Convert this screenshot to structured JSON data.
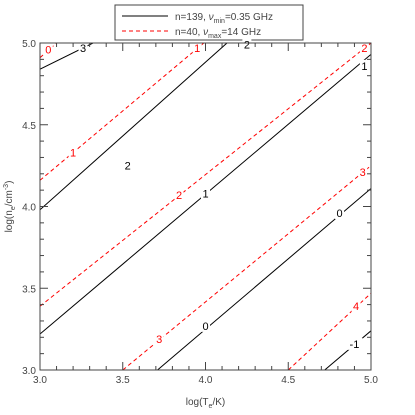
{
  "chart_data": {
    "type": "line",
    "subtype": "contour",
    "xlabel": "log(T",
    "xlabel_sub": "e",
    "xlabel_end": "/K)",
    "ylabel": "log(n",
    "ylabel_sub": "e",
    "ylabel_mid": "/cm",
    "ylabel_sup": "-3",
    "ylabel_end": ")",
    "xlim": [
      3.0,
      5.0
    ],
    "ylim": [
      3.0,
      5.0
    ],
    "xticks": [
      "3.0",
      "3.5",
      "4.0",
      "4.5",
      "5.0"
    ],
    "yticks": [
      "3.0",
      "3.5",
      "4.0",
      "4.5",
      "5.0"
    ],
    "grid": false,
    "legend": {
      "placement": "top-center, outside plot",
      "entries": [
        {
          "text_pre": "n=139, ",
          "nu": "ν",
          "sub": "min",
          "text_post": "=0.35 GHz",
          "color": "#000000",
          "dash": false
        },
        {
          "text_pre": "n=40, ",
          "nu": "ν",
          "sub": "max",
          "text_post": "=14 GHz",
          "color": "#ff0000",
          "dash": true
        }
      ]
    },
    "series": [
      {
        "name": "n=139, νmin=0.35 GHz",
        "color": "#000000",
        "style": "solid",
        "contours": [
          {
            "label": "3",
            "points": [
              [
                3.0,
                4.84
              ],
              [
                3.32,
                5.0
              ]
            ],
            "label_at": [
              3.26,
              4.97
            ]
          },
          {
            "label": "2",
            "points": [
              [
                3.0,
                3.98
              ],
              [
                4.13,
                5.0
              ]
            ],
            "label_at": [
              3.53,
              4.25
            ]
          },
          {
            "label": "2",
            "points": [
              [
                3.0,
                3.98
              ],
              [
                4.13,
                5.0
              ]
            ],
            "label_at": [
              4.25,
              4.99
            ]
          },
          {
            "label": "1",
            "points": [
              [
                3.0,
                3.22
              ],
              [
                5.0,
                4.93
              ]
            ],
            "label_at": [
              4.0,
              4.08
            ]
          },
          {
            "label": "1",
            "points": [
              [
                3.0,
                3.22
              ],
              [
                5.0,
                4.93
              ]
            ],
            "label_at": [
              4.96,
              4.86
            ]
          },
          {
            "label": "0",
            "points": [
              [
                3.71,
                3.0
              ],
              [
                5.0,
                4.11
              ]
            ],
            "label_at": [
              4.0,
              3.27
            ]
          },
          {
            "label": "0",
            "points": [
              [
                3.71,
                3.0
              ],
              [
                5.0,
                4.11
              ]
            ],
            "label_at": [
              4.81,
              3.96
            ]
          },
          {
            "label": "-1",
            "points": [
              [
                4.72,
                3.0
              ],
              [
                5.0,
                3.24
              ]
            ],
            "label_at": [
              4.9,
              3.16
            ]
          }
        ]
      },
      {
        "name": "n=40, νmax=14 GHz",
        "color": "#ff0000",
        "style": "dashed",
        "contours": [
          {
            "label": "0",
            "points": [
              [
                3.0,
                4.91
              ],
              [
                3.1,
                5.0
              ]
            ],
            "label_at": [
              3.05,
              4.96
            ]
          },
          {
            "label": "1",
            "points": [
              [
                3.0,
                4.16
              ],
              [
                3.99,
                5.0
              ]
            ],
            "label_at": [
              3.2,
              4.33
            ]
          },
          {
            "label": "1",
            "points": [
              [
                3.0,
                4.16
              ],
              [
                3.99,
                5.0
              ]
            ],
            "label_at": [
              3.95,
              4.97
            ]
          },
          {
            "label": "2",
            "points": [
              [
                3.0,
                3.39
              ],
              [
                5.0,
                5.0
              ]
            ],
            "label_at": [
              3.84,
              4.07
            ]
          },
          {
            "label": "2",
            "points": [
              [
                3.0,
                3.39
              ],
              [
                5.0,
                5.0
              ]
            ],
            "label_at": [
              4.96,
              4.97
            ]
          },
          {
            "label": "3",
            "points": [
              [
                3.5,
                3.0
              ],
              [
                5.0,
                4.25
              ]
            ],
            "label_at": [
              3.72,
              3.19
            ]
          },
          {
            "label": "3",
            "points": [
              [
                3.5,
                3.0
              ],
              [
                5.0,
                4.25
              ]
            ],
            "label_at": [
              4.95,
              4.21
            ]
          },
          {
            "label": "4",
            "points": [
              [
                4.5,
                3.0
              ],
              [
                5.0,
                3.47
              ]
            ],
            "label_at": [
              4.91,
              3.39
            ]
          }
        ]
      }
    ]
  }
}
